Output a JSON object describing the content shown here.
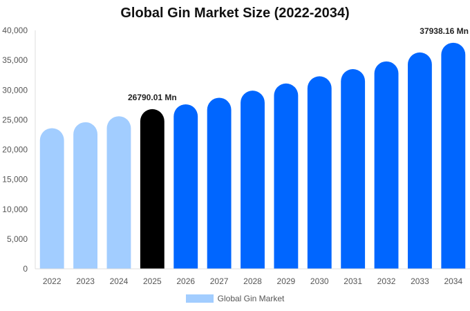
{
  "chart_data": {
    "type": "bar",
    "title": "Global Gin Market Size (2022-2034)",
    "categories": [
      "2022",
      "2023",
      "2024",
      "2025",
      "2026",
      "2027",
      "2028",
      "2029",
      "2030",
      "2031",
      "2032",
      "2033",
      "2034"
    ],
    "series": [
      {
        "name": "Global Gin Market",
        "values": [
          23600,
          24600,
          25600,
          26790.01,
          27600,
          28700,
          29900,
          31100,
          32300,
          33500,
          34800,
          36300,
          37938.16
        ]
      }
    ],
    "ylim": [
      0,
      40000
    ],
    "yticks": [
      0,
      5000,
      10000,
      15000,
      20000,
      25000,
      30000,
      35000,
      40000
    ],
    "ytick_labels": [
      "0",
      "5,000",
      "10,000",
      "15,000",
      "20,000",
      "25,000",
      "30,000",
      "35,000",
      "40,000"
    ],
    "data_labels": [
      {
        "category": "2025",
        "text": "26790.01 Mn"
      },
      {
        "category": "2034",
        "text": "37938.16 Mn"
      }
    ],
    "colors": {
      "historical": "#a2cdff",
      "current": "#000000",
      "forecast": "#0066ff"
    },
    "grid": false,
    "legend": "bottom"
  }
}
